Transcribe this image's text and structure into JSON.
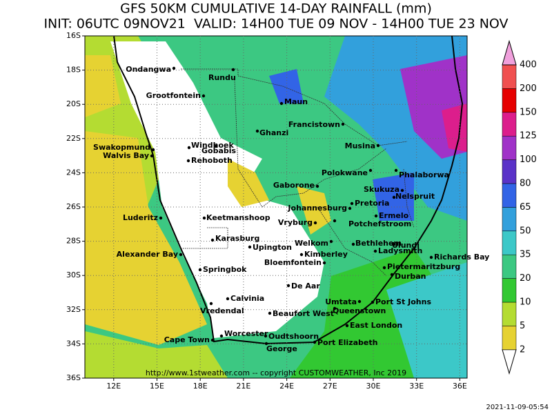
{
  "header": {
    "title": "GFS 50KM CUMULATIVE 14-DAY RAINFALL (mm)",
    "subtitle": "INIT: 06UTC 09NOV21  VALID: 14H00 TUE 09 NOV - 14H00 TUE 23 NOV"
  },
  "axes": {
    "lat_labels": [
      "16S",
      "18S",
      "20S",
      "22S",
      "24S",
      "26S",
      "28S",
      "30S",
      "32S",
      "34S",
      "36S"
    ],
    "lon_labels": [
      "12E",
      "15E",
      "18E",
      "21E",
      "24E",
      "27E",
      "30E",
      "33E",
      "36E"
    ]
  },
  "colorbar": {
    "levels": [
      2,
      5,
      10,
      20,
      35,
      50,
      65,
      80,
      100,
      125,
      150,
      200,
      400
    ],
    "colors": [
      "#ffffff",
      "#e6d232",
      "#b4dc32",
      "#32c832",
      "#3cc882",
      "#3cc8c8",
      "#32a0dc",
      "#3264e6",
      "#5a32c8",
      "#a032c8",
      "#dc1e8c",
      "#e60000",
      "#f05050",
      "#f0a0dc"
    ]
  },
  "cities": [
    "Ondangwa",
    "Rundu",
    "Grootfontein",
    "Maun",
    "Francistown",
    "Ghanzi",
    "Swakopmund",
    "Walvis Bay",
    "Windhoek",
    "Gobabis",
    "Rehoboth",
    "Musina",
    "Polokwane",
    "Phalaborwa",
    "Gaborone",
    "Skukuza",
    "Nelspruit",
    "Pretoria",
    "Johannesburg",
    "Ermelo",
    "Luderitz",
    "Keetmanshoop",
    "Vryburg",
    "Potchefstroom",
    "Karasburg",
    "Upington",
    "Welkom",
    "Bethlehem",
    "Ulundi",
    "Ladysmith",
    "Alexander Bay",
    "Kimberley",
    "Richards Bay",
    "Bloemfontein",
    "Springbok",
    "Pietermaritzburg",
    "Durban",
    "De Aar",
    "Calvinia",
    "Umtata",
    "Port St Johns",
    "Vredendal",
    "Queenstown",
    "Beaufort West",
    "East London",
    "Worcester",
    "Oudtshoorn",
    "Cape Town",
    "Port Elizabeth",
    "George"
  ],
  "footer": {
    "credit": "http://www.1stweather.com -- copyright CUSTOMWEATHER, Inc 2019",
    "timestamp": "2021-11-09-05:54"
  }
}
